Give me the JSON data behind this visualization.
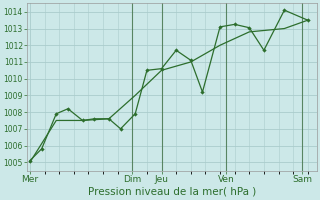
{
  "title": "",
  "xlabel": "Pression niveau de la mer( hPa )",
  "ylabel": "",
  "bg_color": "#cce8e8",
  "grid_color": "#aacccc",
  "line_color": "#2d6e2d",
  "ylim": [
    1004.5,
    1014.5
  ],
  "yticks": [
    1005,
    1006,
    1007,
    1008,
    1009,
    1010,
    1011,
    1012,
    1013,
    1014
  ],
  "x_day_labels": [
    "Mer",
    "",
    "Dim",
    "Jeu",
    "",
    "Ven",
    "",
    "Sam"
  ],
  "x_day_positions": [
    0,
    2,
    3.5,
    4.5,
    6,
    6.7,
    8.3,
    9.5
  ],
  "line1_x": [
    0,
    0.4,
    0.9,
    1.3,
    1.8,
    2.2,
    2.7,
    3.1,
    3.6,
    4.0,
    4.5,
    5.0,
    5.5,
    5.9,
    6.5,
    7.0,
    7.5,
    8.0,
    8.7,
    9.5
  ],
  "line1_y": [
    1005.1,
    1005.8,
    1007.9,
    1008.2,
    1007.5,
    1007.6,
    1007.6,
    1007.0,
    1007.9,
    1010.5,
    1010.6,
    1011.7,
    1011.1,
    1009.2,
    1013.1,
    1013.25,
    1013.05,
    1011.7,
    1014.1,
    1013.5
  ],
  "line2_x": [
    0,
    0.9,
    1.8,
    2.7,
    3.6,
    4.5,
    5.5,
    6.5,
    7.5,
    8.7,
    9.5
  ],
  "line2_y": [
    1005.0,
    1007.5,
    1007.5,
    1007.6,
    1009.0,
    1010.5,
    1011.0,
    1012.0,
    1012.8,
    1013.0,
    1013.5
  ],
  "vline_positions": [
    3.5,
    4.5,
    6.7,
    9.3
  ],
  "vline_color": "#336633",
  "xlabel_fontsize": 7.5,
  "ytick_fontsize": 5.5,
  "xtick_fontsize": 6.5
}
